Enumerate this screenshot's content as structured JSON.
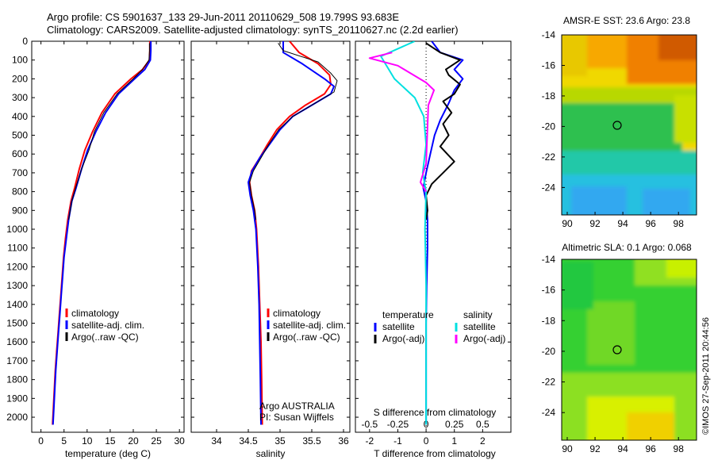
{
  "header": {
    "line1": "Argo profile: CS 5901637_133 29-Jun-2011 20110629_508 19.799S 93.683E",
    "line2": "Climatology: CARS2009. Satellite-adjusted climatology: synTS_20110627.nc (2.2d earlier)"
  },
  "colors": {
    "climatology": "#ff0000",
    "satellite": "#0000ff",
    "argo": "#000000",
    "salinity_sat": "#00e0e0",
    "salinity_argo": "#ff00ff"
  },
  "chart_data": [
    {
      "type": "line",
      "xlabel": "temperature (deg C)",
      "ylim": [
        2080,
        0
      ],
      "xlim": [
        -2,
        31
      ],
      "xticks": [
        0,
        5,
        10,
        15,
        20,
        25,
        30
      ],
      "yticks": [
        0,
        100,
        200,
        300,
        400,
        500,
        600,
        700,
        800,
        900,
        1000,
        1100,
        1200,
        1300,
        1400,
        1500,
        1600,
        1700,
        1800,
        1900,
        2000
      ],
      "legend": {
        "position": "bottom-left",
        "labels": [
          "climatology",
          "satellite-adj. clim.",
          "Argo(..raw -QC)"
        ]
      },
      "series": [
        {
          "name": "climatology",
          "color": "#ff0000",
          "width": 2,
          "points": [
            [
              23.6,
              0
            ],
            [
              23.6,
              50
            ],
            [
              23.5,
              100
            ],
            [
              22,
              150
            ],
            [
              19.5,
              200
            ],
            [
              16,
              280
            ],
            [
              13.2,
              380
            ],
            [
              11.2,
              480
            ],
            [
              9.5,
              580
            ],
            [
              8.3,
              680
            ],
            [
              7.3,
              780
            ],
            [
              6.5,
              850
            ],
            [
              5.8,
              950
            ],
            [
              5.3,
              1050
            ],
            [
              4.9,
              1150
            ],
            [
              4.6,
              1250
            ],
            [
              4.3,
              1350
            ],
            [
              4.0,
              1450
            ],
            [
              3.7,
              1550
            ],
            [
              3.4,
              1650
            ],
            [
              3.1,
              1750
            ],
            [
              2.9,
              1850
            ],
            [
              2.7,
              1950
            ],
            [
              2.5,
              2040
            ]
          ]
        },
        {
          "name": "satellite-adj. clim.",
          "color": "#0000ff",
          "width": 2,
          "points": [
            [
              23.8,
              0
            ],
            [
              23.8,
              50
            ],
            [
              23.7,
              100
            ],
            [
              22.5,
              150
            ],
            [
              20.3,
              200
            ],
            [
              16.8,
              280
            ],
            [
              14,
              380
            ],
            [
              11.9,
              480
            ],
            [
              10.1,
              580
            ],
            [
              8.8,
              680
            ],
            [
              7.6,
              780
            ],
            [
              6.7,
              850
            ],
            [
              6.0,
              950
            ],
            [
              5.5,
              1050
            ],
            [
              5.0,
              1150
            ],
            [
              4.7,
              1250
            ],
            [
              4.4,
              1350
            ],
            [
              4.1,
              1450
            ],
            [
              3.8,
              1550
            ],
            [
              3.5,
              1650
            ],
            [
              3.2,
              1750
            ],
            [
              3.0,
              1850
            ],
            [
              2.8,
              1950
            ],
            [
              2.6,
              2040
            ]
          ]
        },
        {
          "name": "Argo(..raw -QC)",
          "color": "#000000",
          "width": 1,
          "points": [
            [
              23.5,
              10
            ],
            [
              23.5,
              50
            ],
            [
              23.4,
              100
            ],
            [
              22,
              150
            ],
            [
              20,
              200
            ],
            [
              16.5,
              280
            ],
            [
              13.6,
              380
            ],
            [
              11.6,
              480
            ],
            [
              10.4,
              580
            ],
            [
              8.8,
              680
            ],
            [
              7.5,
              780
            ],
            [
              6.7,
              850
            ],
            [
              6.0,
              950
            ]
          ]
        }
      ],
      "annotations": []
    },
    {
      "type": "line",
      "xlabel": "salinity",
      "ylim": [
        2080,
        0
      ],
      "xlim": [
        33.6,
        36.1
      ],
      "xticks": [
        34,
        34.5,
        35,
        35.5,
        36
      ],
      "legend": {
        "position": "bottom-left",
        "labels": [
          "climatology",
          "satellite-adj. clim.",
          "Argo(..raw -QC)"
        ]
      },
      "series": [
        {
          "name": "climatology",
          "color": "#ff0000",
          "width": 2,
          "points": [
            [
              35.15,
              0
            ],
            [
              35.3,
              60
            ],
            [
              35.6,
              120
            ],
            [
              35.78,
              180
            ],
            [
              35.8,
              230
            ],
            [
              35.7,
              280
            ],
            [
              35.4,
              340
            ],
            [
              35.15,
              400
            ],
            [
              34.95,
              470
            ],
            [
              34.8,
              550
            ],
            [
              34.68,
              620
            ],
            [
              34.55,
              690
            ],
            [
              34.52,
              750
            ],
            [
              34.55,
              820
            ],
            [
              34.6,
              900
            ],
            [
              34.63,
              1000
            ],
            [
              34.66,
              1200
            ],
            [
              34.68,
              1400
            ],
            [
              34.7,
              1600
            ],
            [
              34.71,
              1800
            ],
            [
              34.72,
              2040
            ]
          ]
        },
        {
          "name": "satellite-adj. clim.",
          "color": "#0000ff",
          "width": 2,
          "points": [
            [
              35.05,
              0
            ],
            [
              35.05,
              60
            ],
            [
              35.35,
              120
            ],
            [
              35.7,
              200
            ],
            [
              35.85,
              240
            ],
            [
              35.8,
              280
            ],
            [
              35.5,
              340
            ],
            [
              35.2,
              400
            ],
            [
              35.0,
              470
            ],
            [
              34.83,
              550
            ],
            [
              34.68,
              620
            ],
            [
              34.56,
              690
            ],
            [
              34.5,
              750
            ],
            [
              34.53,
              820
            ],
            [
              34.58,
              900
            ],
            [
              34.62,
              1000
            ],
            [
              34.65,
              1200
            ],
            [
              34.67,
              1400
            ],
            [
              34.68,
              1600
            ],
            [
              34.69,
              1800
            ],
            [
              34.7,
              2040
            ]
          ]
        },
        {
          "name": "Argo(..raw -QC)",
          "color": "#000000",
          "width": 1,
          "points": [
            [
              34.97,
              10
            ],
            [
              35.05,
              50
            ],
            [
              35.6,
              110
            ],
            [
              35.8,
              170
            ],
            [
              35.9,
              210
            ],
            [
              35.85,
              270
            ],
            [
              35.55,
              330
            ],
            [
              35.2,
              400
            ],
            [
              34.98,
              470
            ],
            [
              34.82,
              550
            ],
            [
              34.7,
              620
            ],
            [
              34.58,
              690
            ],
            [
              34.52,
              750
            ],
            [
              34.55,
              820
            ],
            [
              34.6,
              900
            ],
            [
              34.62,
              950
            ]
          ]
        }
      ],
      "annotations": [
        "Argo AUSTRALIA",
        "PI: Susan Wijffels"
      ]
    },
    {
      "type": "line",
      "xlabel": "T difference from climatology",
      "top_xlabel": "S difference from climatology",
      "ylim": [
        2080,
        0
      ],
      "xlim": [
        -2.5,
        3
      ],
      "xticks": [
        -2,
        -1,
        0,
        1,
        2
      ],
      "top_ticks": [
        -0.5,
        -0.25,
        0,
        0.25,
        0.5
      ],
      "zero_line": true,
      "legend": {
        "position": "bottom",
        "groups": [
          {
            "title": "temperature",
            "items": [
              "satellite",
              "Argo(-adj)"
            ]
          },
          {
            "title": "salinity",
            "items": [
              "satellite",
              "Argo(-adj)"
            ]
          }
        ]
      },
      "series": [
        {
          "name": "temperature satellite",
          "color": "#0000ff",
          "width": 2,
          "points": [
            [
              0.2,
              0
            ],
            [
              0.5,
              60
            ],
            [
              1.3,
              100
            ],
            [
              1.0,
              150
            ],
            [
              1.3,
              200
            ],
            [
              1.0,
              260
            ],
            [
              0.8,
              330
            ],
            [
              0.5,
              420
            ],
            [
              0.3,
              500
            ],
            [
              0.15,
              600
            ],
            [
              0.0,
              700
            ],
            [
              -0.1,
              780
            ],
            [
              0.0,
              850
            ],
            [
              0.05,
              950
            ],
            [
              0.05,
              1100
            ],
            [
              0.02,
              1300
            ],
            [
              0.0,
              1500
            ],
            [
              0.0,
              1800
            ],
            [
              0.0,
              2040
            ]
          ]
        },
        {
          "name": "temperature Argo(-adj)",
          "color": "#000000",
          "width": 2,
          "points": [
            [
              0.0,
              10
            ],
            [
              0.5,
              60
            ],
            [
              1.2,
              100
            ],
            [
              0.7,
              150
            ],
            [
              0.8,
              180
            ],
            [
              1.2,
              230
            ],
            [
              1.0,
              280
            ],
            [
              0.6,
              320
            ],
            [
              0.9,
              380
            ],
            [
              0.6,
              440
            ],
            [
              0.8,
              500
            ],
            [
              0.5,
              560
            ],
            [
              1.0,
              640
            ],
            [
              0.6,
              700
            ],
            [
              0.2,
              760
            ],
            [
              0.0,
              820
            ],
            [
              0.05,
              900
            ],
            [
              0.0,
              950
            ]
          ]
        },
        {
          "name": "salinity satellite",
          "color": "#00e0e0",
          "width": 2,
          "points": [
            [
              -0.1,
              0
            ],
            [
              -0.4,
              80
            ],
            [
              -0.28,
              200
            ],
            [
              -0.1,
              300
            ],
            [
              -0.02,
              400
            ],
            [
              0.0,
              550
            ],
            [
              -0.03,
              700
            ],
            [
              0.0,
              800
            ],
            [
              -0.01,
              1000
            ],
            [
              0.0,
              1300
            ],
            [
              0.0,
              2040
            ]
          ]
        },
        {
          "name": "salinity Argo(-adj)",
          "color": "#ff00ff",
          "width": 2,
          "points": [
            [
              -0.3,
              60
            ],
            [
              -0.5,
              90
            ],
            [
              -0.25,
              130
            ],
            [
              0.0,
              220
            ],
            [
              0.07,
              260
            ],
            [
              0.02,
              340
            ],
            [
              0.01,
              500
            ],
            [
              0.0,
              650
            ],
            [
              -0.05,
              750
            ],
            [
              0.0,
              800
            ]
          ]
        }
      ],
      "annotations": []
    }
  ],
  "maps": {
    "sst": {
      "title": "AMSR-E SST: 23.6 Argo: 23.8",
      "xticks": [
        "90",
        "92",
        "94",
        "96",
        "98"
      ],
      "yticks": [
        "-14",
        "-16",
        "-18",
        "-20",
        "-22",
        "-24"
      ]
    },
    "sla": {
      "title": "Altimetric SLA: 0.1 Argo: 0.068",
      "xticks": [
        "90",
        "92",
        "94",
        "96",
        "98"
      ],
      "yticks": [
        "-14",
        "-16",
        "-18",
        "-20",
        "-22",
        "-24"
      ]
    }
  },
  "timestamp": "©IMOS 27-Sep-2011 20:44:56"
}
